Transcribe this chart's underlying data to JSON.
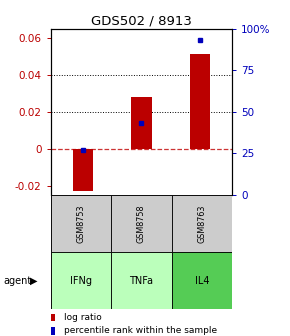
{
  "title": "GDS502 / 8913",
  "samples": [
    "GSM8753",
    "GSM8758",
    "GSM8763"
  ],
  "agents": [
    "IFNg",
    "TNFa",
    "IL4"
  ],
  "log_ratios": [
    -0.023,
    0.028,
    0.051
  ],
  "percentile_ranks": [
    27,
    43,
    93
  ],
  "ylim_left": [
    -0.025,
    0.065
  ],
  "ylim_right": [
    0,
    100
  ],
  "yticks_left": [
    -0.02,
    0,
    0.02,
    0.04,
    0.06
  ],
  "ytick_labels_left": [
    "-0.02",
    "0",
    "0.02",
    "0.04",
    "0.06"
  ],
  "yticks_right": [
    0,
    25,
    50,
    75,
    100
  ],
  "ytick_labels_right": [
    "0",
    "25",
    "50",
    "75",
    "100%"
  ],
  "bar_color": "#bb0000",
  "dot_color": "#0000bb",
  "zero_line_color": "#cc3333",
  "dotted_line_color": "#000000",
  "sample_bg_color": "#cccccc",
  "agent_bg_color_light": "#bbffbb",
  "agent_bg_color_dark": "#55cc55",
  "legend_bar_label": "log ratio",
  "legend_dot_label": "percentile rank within the sample",
  "agent_label": "agent",
  "bar_width": 0.35
}
